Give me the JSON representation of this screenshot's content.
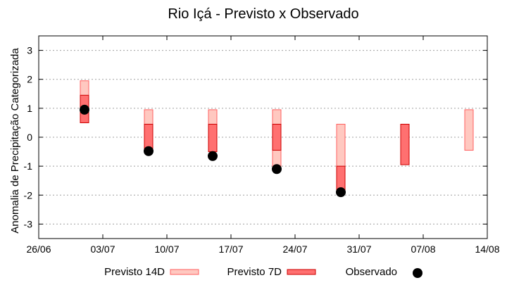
{
  "chart_data": {
    "type": "floating-bar",
    "title": "Rio Içá - Previsto x Observado",
    "xlabel": "",
    "ylabel": "Anomalia de Precipitação Categorizada",
    "ylim": [
      -3.5,
      3.5
    ],
    "yticks": [
      -3,
      -2,
      -1,
      0,
      1,
      2,
      3
    ],
    "xlim_days": [
      0,
      49
    ],
    "xticks": [
      {
        "day": 0,
        "label": "26/06"
      },
      {
        "day": 7,
        "label": "03/07"
      },
      {
        "day": 14,
        "label": "10/07"
      },
      {
        "day": 21,
        "label": "17/07"
      },
      {
        "day": 28,
        "label": "24/07"
      },
      {
        "day": 35,
        "label": "31/07"
      },
      {
        "day": 42,
        "label": "07/08"
      },
      {
        "day": 49,
        "label": "14/08"
      }
    ],
    "grid": true,
    "series": [
      {
        "name": "Previsto 14D",
        "fill": "#ffc8c0",
        "stroke": "#ff6060",
        "bars": [
          {
            "day": 5,
            "low": 0.5,
            "high": 1.95
          },
          {
            "day": 12,
            "low": -0.5,
            "high": 0.95
          },
          {
            "day": 19,
            "low": -0.5,
            "high": 0.95
          },
          {
            "day": 26,
            "low": -1.0,
            "high": 0.95
          },
          {
            "day": 33,
            "low": -1.95,
            "high": 0.45
          },
          {
            "day": 47,
            "low": -0.45,
            "high": 0.95
          }
        ]
      },
      {
        "name": "Previsto 7D",
        "fill": "#ff7070",
        "stroke": "#cc0000",
        "bars": [
          {
            "day": 5,
            "low": 0.5,
            "high": 1.45
          },
          {
            "day": 12,
            "low": -0.5,
            "high": 0.45
          },
          {
            "day": 19,
            "low": -0.5,
            "high": 0.45
          },
          {
            "day": 26,
            "low": -0.45,
            "high": 0.45
          },
          {
            "day": 33,
            "low": -1.95,
            "high": -1.0
          },
          {
            "day": 40,
            "low": -0.95,
            "high": 0.45
          }
        ]
      },
      {
        "name": "Observado",
        "color": "#000000",
        "points": [
          {
            "day": 5,
            "value": 0.95
          },
          {
            "day": 12,
            "value": -0.48
          },
          {
            "day": 19,
            "value": -0.65
          },
          {
            "day": 26,
            "value": -1.1
          },
          {
            "day": 33,
            "value": -1.9
          }
        ]
      }
    ],
    "legend_position": "bottom"
  }
}
